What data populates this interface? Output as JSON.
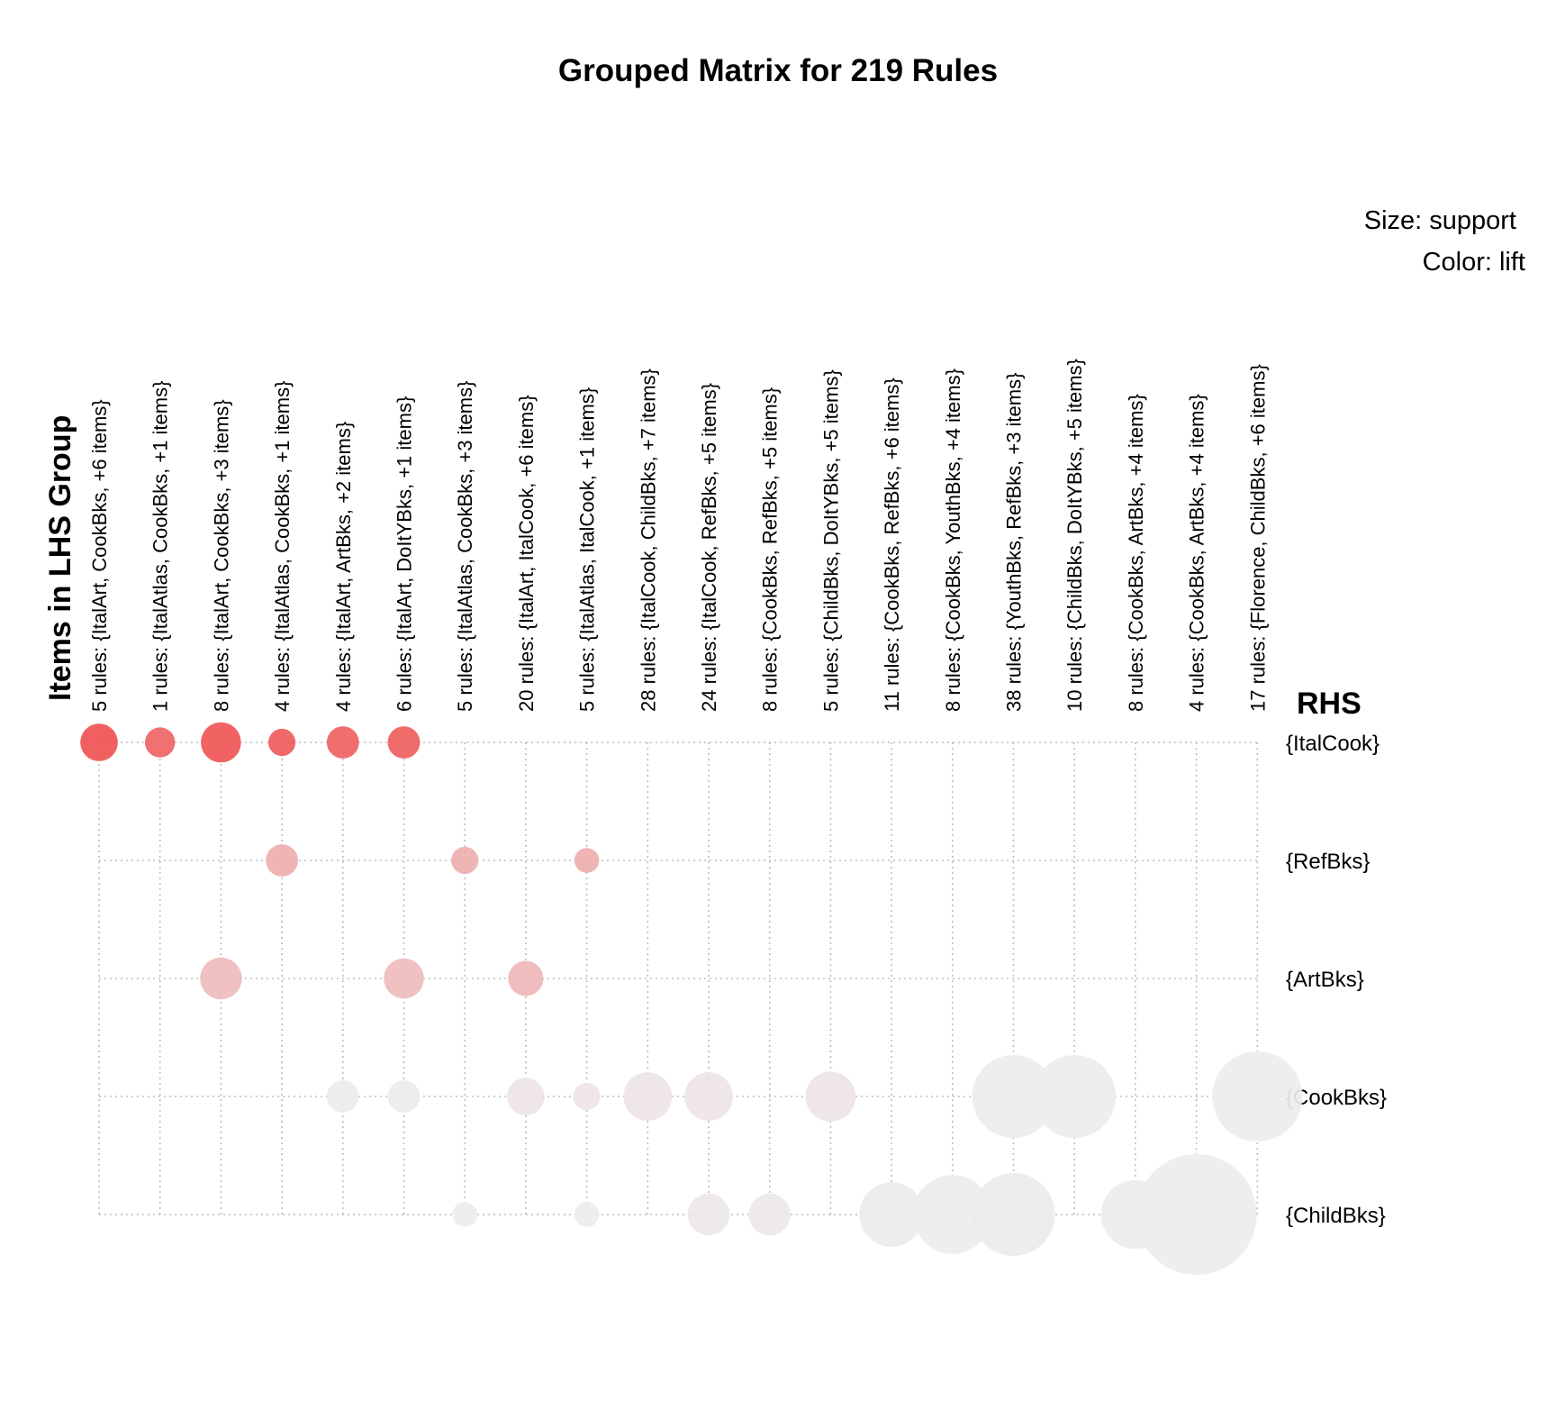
{
  "chart_data": {
    "type": "grouped-matrix",
    "title": "Grouped Matrix for 219 Rules",
    "lhs_axis_title": "Items in LHS Group",
    "rhs_axis_title": "RHS",
    "legend": {
      "size": "Size: support",
      "color": "Color: lift",
      "placement": "top-right"
    },
    "grid": true,
    "lhs_groups": [
      "5 rules: {ItalArt, CookBks, +6 items}",
      "1 rules: {ItalAtlas, CookBks, +1 items}",
      "8 rules: {ItalArt, CookBks, +3 items}",
      "4 rules: {ItalAtlas, CookBks, +1 items}",
      "4 rules: {ItalArt, ArtBks, +2 items}",
      "6 rules: {ItalArt, DoItYBks, +1 items}",
      "5 rules: {ItalAtlas, CookBks, +3 items}",
      "20 rules: {ItalArt, ItalCook, +6 items}",
      "5 rules: {ItalAtlas, ItalCook, +1 items}",
      "28 rules: {ItalCook, ChildBks, +7 items}",
      "24 rules: {ItalCook, RefBks, +5 items}",
      "8 rules: {CookBks, RefBks, +5 items}",
      "5 rules: {ChildBks, DoItYBks, +5 items}",
      "11 rules: {CookBks, RefBks, +6 items}",
      "8 rules: {CookBks, YouthBks, +4 items}",
      "38 rules: {YouthBks, RefBks, +3 items}",
      "10 rules: {ChildBks, DoItYBks, +5 items}",
      "8 rules: {CookBks, ArtBks, +4 items}",
      "4 rules: {CookBks, ArtBks, +4 items}",
      "17 rules: {Florence, ChildBks, +6 items}"
    ],
    "rhs_items": [
      "{ItalCook}",
      "{RefBks}",
      "{ArtBks}",
      "{CookBks}",
      "{ChildBks}"
    ],
    "points": [
      {
        "lhs": 0,
        "rhs": 0,
        "support": 0.0171,
        "lift": 1.0
      },
      {
        "lhs": 1,
        "rhs": 0,
        "support": 0.011,
        "lift": 0.88
      },
      {
        "lhs": 2,
        "rhs": 0,
        "support": 0.0196,
        "lift": 0.98
      },
      {
        "lhs": 3,
        "rhs": 0,
        "support": 0.009,
        "lift": 0.95
      },
      {
        "lhs": 4,
        "rhs": 0,
        "support": 0.0127,
        "lift": 0.9
      },
      {
        "lhs": 5,
        "rhs": 0,
        "support": 0.0127,
        "lift": 0.92
      },
      {
        "lhs": 3,
        "rhs": 1,
        "support": 0.0127,
        "lift": 0.4
      },
      {
        "lhs": 6,
        "rhs": 1,
        "support": 0.009,
        "lift": 0.4
      },
      {
        "lhs": 8,
        "rhs": 1,
        "support": 0.0075,
        "lift": 0.4
      },
      {
        "lhs": 2,
        "rhs": 2,
        "support": 0.0212,
        "lift": 0.32
      },
      {
        "lhs": 5,
        "rhs": 2,
        "support": 0.0196,
        "lift": 0.32
      },
      {
        "lhs": 7,
        "rhs": 2,
        "support": 0.015,
        "lift": 0.35
      },
      {
        "lhs": 4,
        "rhs": 3,
        "support": 0.0127,
        "lift": 0.02
      },
      {
        "lhs": 5,
        "rhs": 3,
        "support": 0.0127,
        "lift": 0.02
      },
      {
        "lhs": 7,
        "rhs": 3,
        "support": 0.0171,
        "lift": 0.05
      },
      {
        "lhs": 8,
        "rhs": 3,
        "support": 0.009,
        "lift": 0.05
      },
      {
        "lhs": 9,
        "rhs": 3,
        "support": 0.0286,
        "lift": 0.05
      },
      {
        "lhs": 10,
        "rhs": 3,
        "support": 0.0286,
        "lift": 0.05
      },
      {
        "lhs": 12,
        "rhs": 3,
        "support": 0.0306,
        "lift": 0.05
      },
      {
        "lhs": 15,
        "rhs": 3,
        "support": 0.0835,
        "lift": 0.0
      },
      {
        "lhs": 16,
        "rhs": 3,
        "support": 0.0835,
        "lift": 0.0
      },
      {
        "lhs": 19,
        "rhs": 3,
        "support": 0.099,
        "lift": 0.0
      },
      {
        "lhs": 6,
        "rhs": 4,
        "support": 0.0075,
        "lift": 0.0
      },
      {
        "lhs": 8,
        "rhs": 4,
        "support": 0.0075,
        "lift": 0.0
      },
      {
        "lhs": 10,
        "rhs": 4,
        "support": 0.0212,
        "lift": 0.03
      },
      {
        "lhs": 11,
        "rhs": 4,
        "support": 0.0212,
        "lift": 0.03
      },
      {
        "lhs": 13,
        "rhs": 4,
        "support": 0.0506,
        "lift": 0.02
      },
      {
        "lhs": 14,
        "rhs": 4,
        "support": 0.0756,
        "lift": 0.01
      },
      {
        "lhs": 15,
        "rhs": 4,
        "support": 0.0835,
        "lift": 0.02
      },
      {
        "lhs": 17,
        "rhs": 4,
        "support": 0.0576,
        "lift": 0.0
      },
      {
        "lhs": 18,
        "rhs": 4,
        "support": 0.1772,
        "lift": 0.0
      }
    ],
    "colors": {
      "high": "#ef5352",
      "low": "#eeeded",
      "grid": "#bdbdbd"
    }
  }
}
